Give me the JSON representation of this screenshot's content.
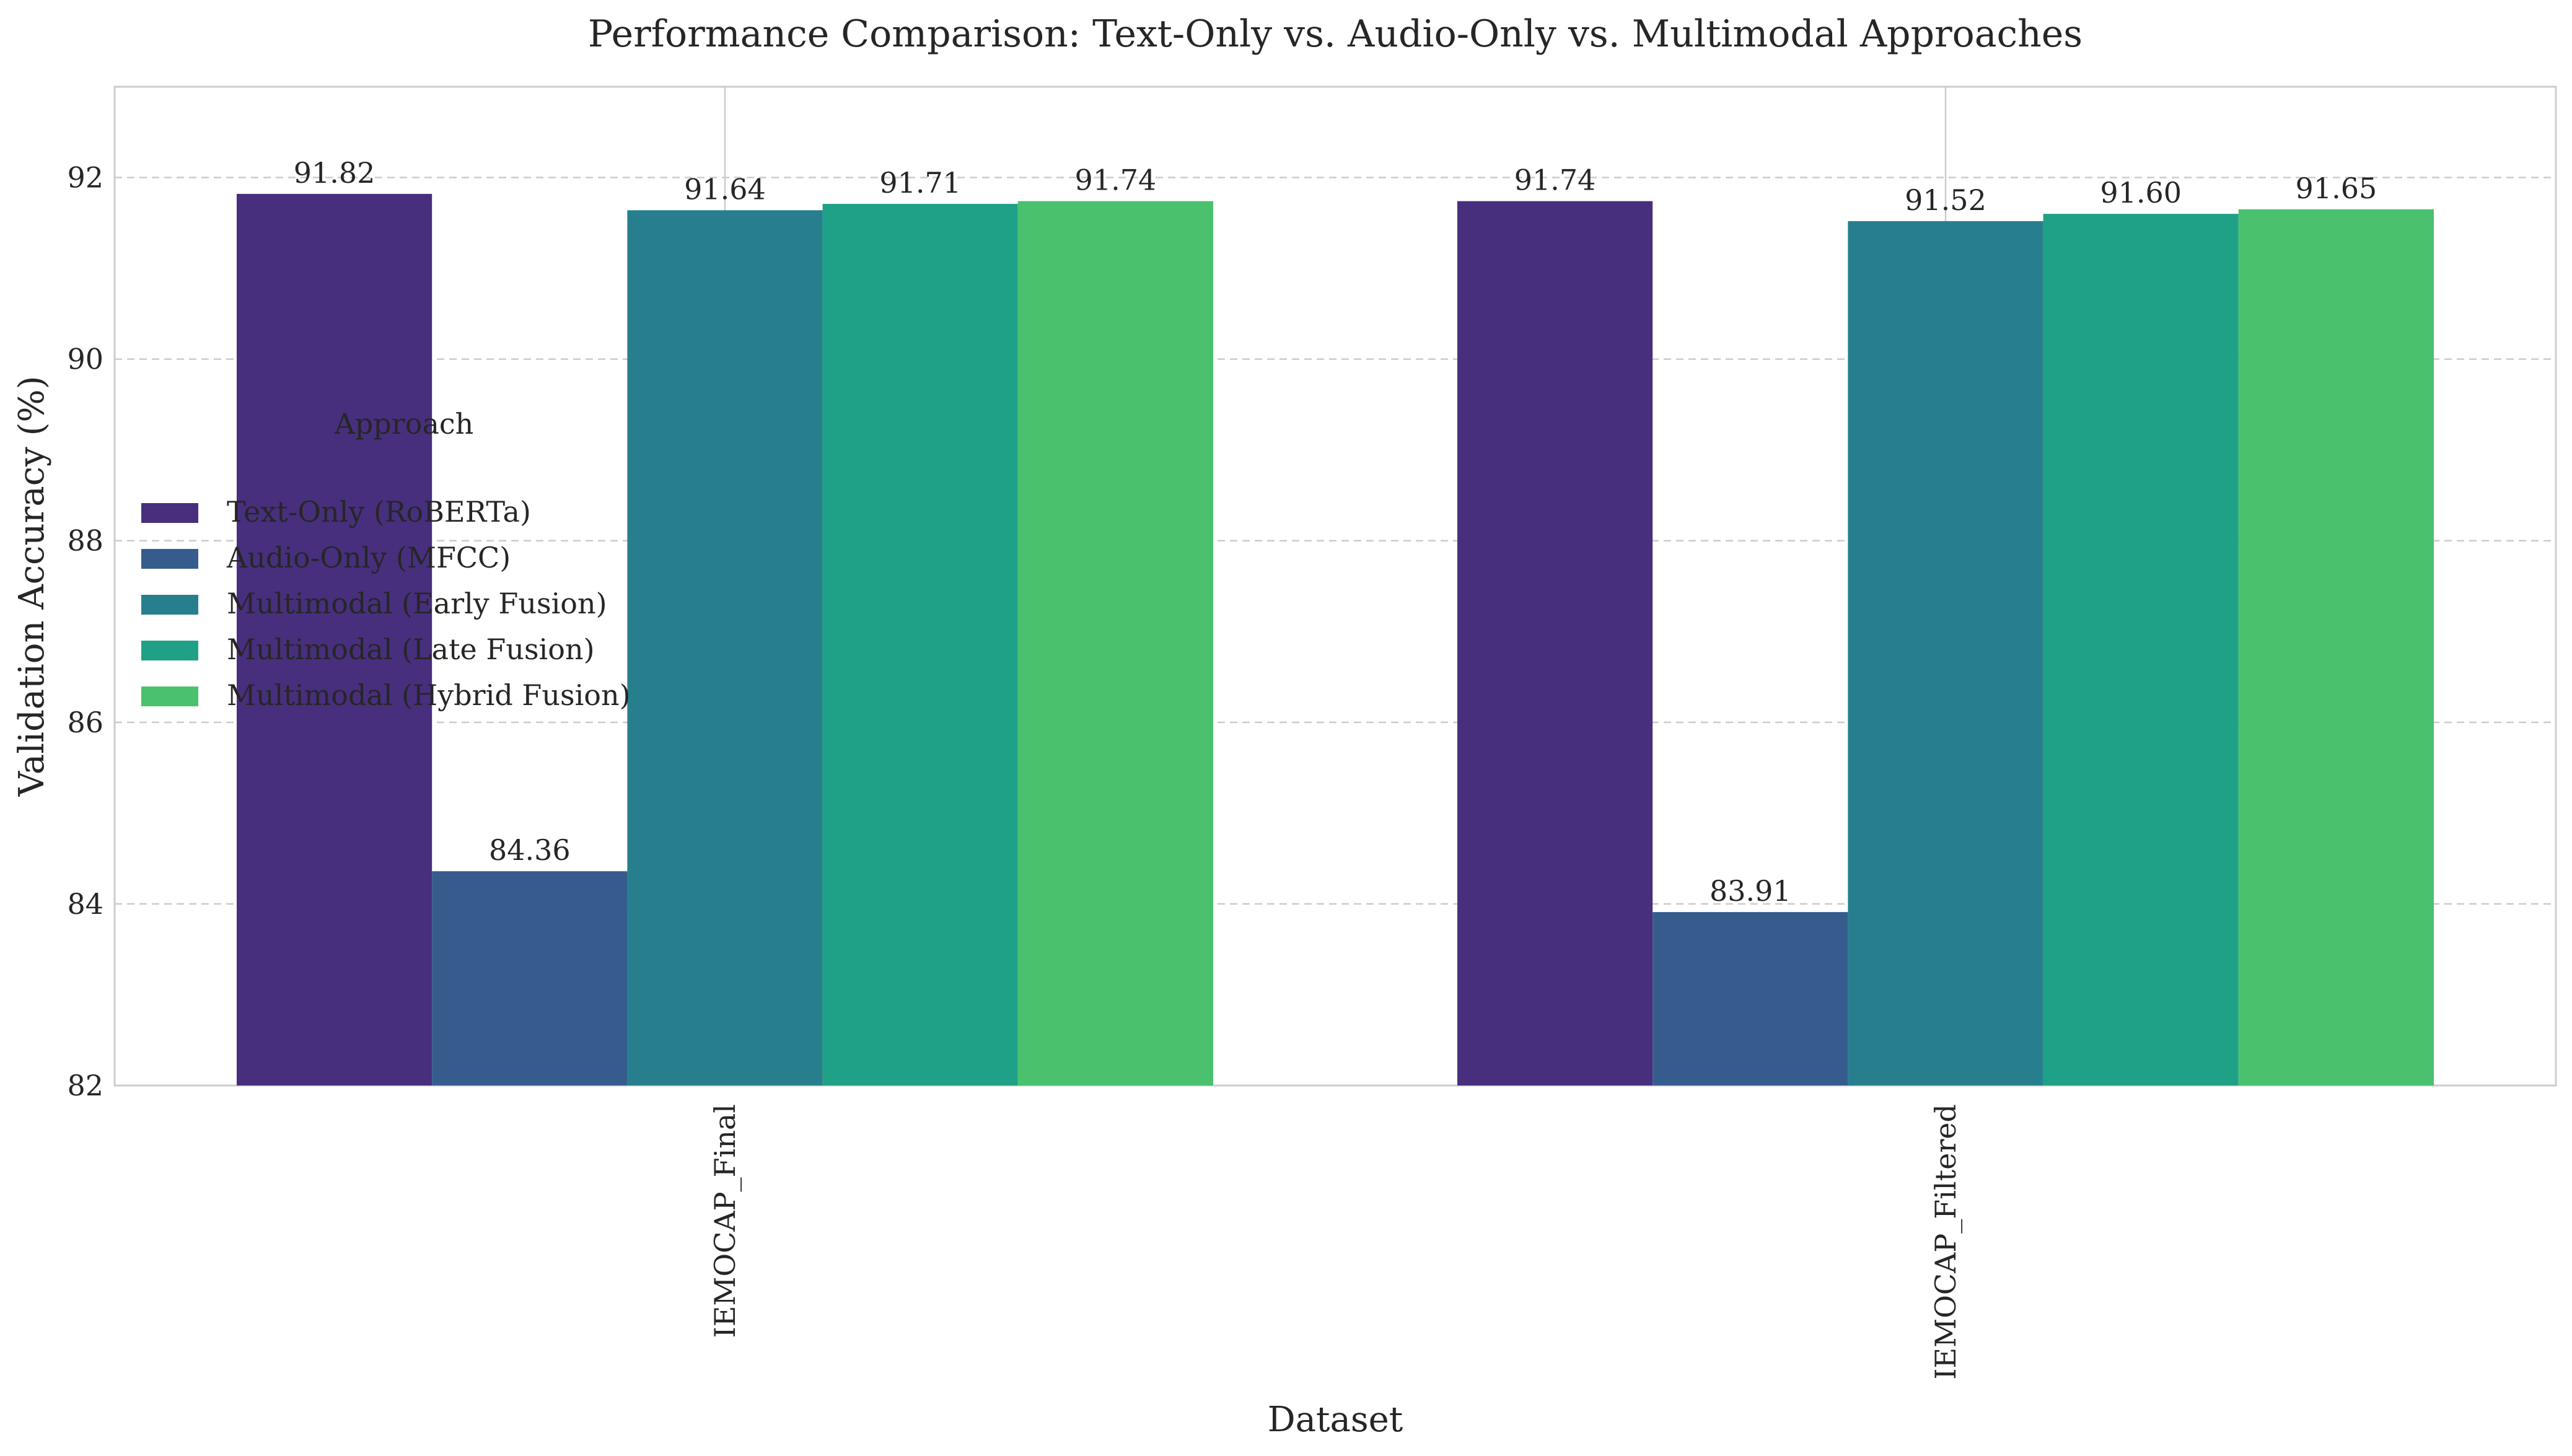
{
  "chart_data": {
    "type": "bar",
    "title": "Performance Comparison: Text-Only vs. Audio-Only vs. Multimodal Approaches",
    "xlabel": "Dataset",
    "ylabel": "Validation Accuracy (%)",
    "categories": [
      "IEMOCAP_Final",
      "IEMOCAP_Filtered"
    ],
    "ylim": [
      82,
      93
    ],
    "yticks": [
      82,
      84,
      86,
      88,
      90,
      92
    ],
    "grid": true,
    "legend": {
      "title": "Approach",
      "placement": "center-left"
    },
    "series": [
      {
        "name": "Text-Only (RoBERTa)",
        "values": [
          91.82,
          91.74
        ],
        "labels": [
          "91.82",
          "91.74"
        ],
        "color": "#472f7d"
      },
      {
        "name": "Audio-Only (MFCC)",
        "values": [
          84.36,
          83.91
        ],
        "labels": [
          "84.36",
          "83.91"
        ],
        "color": "#365c8d"
      },
      {
        "name": "Multimodal (Early Fusion)",
        "values": [
          91.64,
          91.52
        ],
        "labels": [
          "91.64",
          "91.52"
        ],
        "color": "#277f8e"
      },
      {
        "name": "Multimodal (Late Fusion)",
        "values": [
          91.71,
          91.6
        ],
        "labels": [
          "91.71",
          "91.60"
        ],
        "color": "#1fa187"
      },
      {
        "name": "Multimodal (Hybrid Fusion)",
        "values": [
          91.74,
          91.65
        ],
        "labels": [
          "91.74",
          "91.65"
        ],
        "color": "#4ac16d"
      }
    ]
  }
}
